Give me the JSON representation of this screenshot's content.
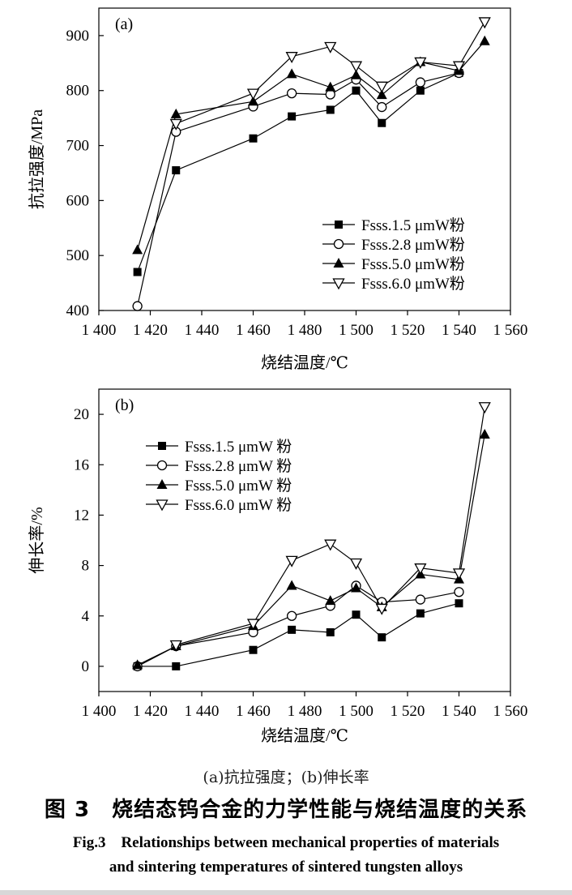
{
  "chart_data": [
    {
      "type": "line",
      "panel_label": "(a)",
      "title": "",
      "xlabel": "烧结温度/℃",
      "ylabel": "抗拉强度/MPa",
      "xlim": [
        1400,
        1560
      ],
      "ylim": [
        400,
        950
      ],
      "xticks": [
        1400,
        1420,
        1440,
        1460,
        1480,
        1500,
        1520,
        1540,
        1560
      ],
      "xtick_labels": [
        "1 400",
        "1 420",
        "1 440",
        "1 460",
        "1 480",
        "1 500",
        "1 520",
        "1 540",
        "1 560"
      ],
      "yticks": [
        400,
        500,
        600,
        700,
        800,
        900
      ],
      "ytick_labels": [
        "400",
        "500",
        "600",
        "700",
        "800",
        "900"
      ],
      "legend_position": "lower-right",
      "series": [
        {
          "name": "Fsss.1.5 μmW粉",
          "marker": "square-filled",
          "x": [
            1415,
            1430,
            1460,
            1475,
            1490,
            1500,
            1510,
            1525,
            1540
          ],
          "y": [
            470,
            655,
            713,
            753,
            765,
            800,
            741,
            800,
            832
          ]
        },
        {
          "name": "Fsss.2.8 μmW粉",
          "marker": "circle-open",
          "x": [
            1415,
            1430,
            1460,
            1475,
            1490,
            1500,
            1510,
            1525,
            1540
          ],
          "y": [
            408,
            725,
            771,
            795,
            793,
            820,
            770,
            815,
            832
          ]
        },
        {
          "name": "Fsss.5.0 μmW粉",
          "marker": "triangle-up-filled",
          "x": [
            1415,
            1430,
            1460,
            1475,
            1490,
            1500,
            1510,
            1525,
            1540,
            1550
          ],
          "y": [
            510,
            757,
            780,
            830,
            806,
            828,
            792,
            852,
            836,
            890
          ]
        },
        {
          "name": "Fsss.6.0 μmW粉",
          "marker": "triangle-down-open",
          "x": [
            1430,
            1460,
            1475,
            1490,
            1500,
            1510,
            1525,
            1540,
            1550
          ],
          "y": [
            740,
            795,
            862,
            880,
            845,
            808,
            852,
            845,
            925
          ]
        }
      ]
    },
    {
      "type": "line",
      "panel_label": "(b)",
      "title": "",
      "xlabel": "烧结温度/℃",
      "ylabel": "伸长率/%",
      "xlim": [
        1400,
        1560
      ],
      "ylim": [
        -2,
        22
      ],
      "xticks": [
        1400,
        1420,
        1440,
        1460,
        1480,
        1500,
        1520,
        1540,
        1560
      ],
      "xtick_labels": [
        "1 400",
        "1 420",
        "1 440",
        "1 460",
        "1 480",
        "1 500",
        "1 520",
        "1 540",
        "1 560"
      ],
      "yticks": [
        0,
        4,
        8,
        12,
        16,
        20
      ],
      "ytick_labels": [
        "0",
        "4",
        "8",
        "12",
        "16",
        "20"
      ],
      "legend_position": "upper-left",
      "series": [
        {
          "name": "Fsss.1.5 μmW 粉",
          "marker": "square-filled",
          "x": [
            1415,
            1430,
            1460,
            1475,
            1490,
            1500,
            1510,
            1525,
            1540
          ],
          "y": [
            0,
            0,
            1.3,
            2.9,
            2.7,
            4.1,
            2.3,
            4.2,
            5.0
          ]
        },
        {
          "name": "Fsss.2.8 μmW 粉",
          "marker": "circle-open",
          "x": [
            1415,
            1430,
            1460,
            1475,
            1490,
            1500,
            1510,
            1525,
            1540
          ],
          "y": [
            0,
            1.6,
            2.7,
            4.0,
            4.8,
            6.4,
            5.1,
            5.3,
            5.9
          ]
        },
        {
          "name": "Fsss.5.0 μmW 粉",
          "marker": "triangle-up-filled",
          "x": [
            1415,
            1430,
            1460,
            1475,
            1490,
            1500,
            1510,
            1525,
            1540,
            1550
          ],
          "y": [
            0.1,
            1.6,
            3.2,
            6.4,
            5.2,
            6.2,
            4.7,
            7.3,
            6.9,
            18.4
          ]
        },
        {
          "name": "Fsss.6.0 μmW 粉",
          "marker": "triangle-down-open",
          "x": [
            1430,
            1460,
            1475,
            1490,
            1500,
            1510,
            1525,
            1540,
            1550
          ],
          "y": [
            1.7,
            3.4,
            8.4,
            9.7,
            8.2,
            4.6,
            7.8,
            7.4,
            20.6
          ]
        }
      ]
    }
  ],
  "caption": {
    "subcaption": "(a)抗拉强度；(b)伸长率",
    "title": "图 3　烧结态钨合金的力学性能与烧结温度的关系",
    "english_line1": "Fig.3　Relationships between mechanical properties of materials",
    "english_line2": "and sintering temperatures of sintered tungsten alloys"
  },
  "colors": {
    "ink": "#000000",
    "marker_fill_open": "#ffffff",
    "footer_rule": "#d8d8d8"
  }
}
